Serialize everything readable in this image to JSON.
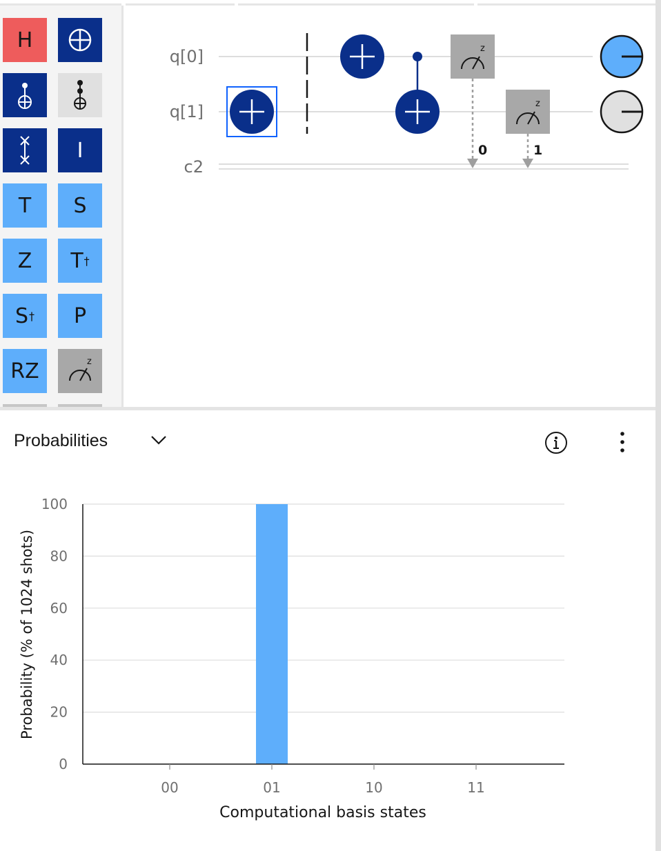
{
  "palette": {
    "gates": [
      {
        "name": "h-gate",
        "label": "H"
      },
      {
        "name": "not-gate",
        "label": ""
      },
      {
        "name": "cnot-gate",
        "label": ""
      },
      {
        "name": "toffoli-gate",
        "label": ""
      },
      {
        "name": "swap-gate",
        "label": ""
      },
      {
        "name": "identity-gate",
        "label": "I"
      },
      {
        "name": "t-gate",
        "label": "T"
      },
      {
        "name": "s-gate",
        "label": "S"
      },
      {
        "name": "z-gate",
        "label": "Z"
      },
      {
        "name": "tdg-gate",
        "label": "T",
        "sup": "†"
      },
      {
        "name": "sdg-gate",
        "label": "S",
        "sup": "†"
      },
      {
        "name": "p-gate",
        "label": "P"
      },
      {
        "name": "rz-gate",
        "label": "RZ"
      },
      {
        "name": "measure-gate",
        "label": "z"
      }
    ]
  },
  "circuit": {
    "qubits": [
      "q[0]",
      "q[1]"
    ],
    "classical": "c2",
    "measure_basis": "z",
    "measure_bits": [
      "0",
      "1"
    ],
    "colors": {
      "navy": "#0a2f8a",
      "light_blue": "#5eaefb",
      "measure_gray": "#a8a8a8",
      "wire": "#dddddd"
    }
  },
  "results": {
    "title": "Probabilities",
    "chart_data": {
      "type": "bar",
      "categories": [
        "00",
        "01",
        "10",
        "11"
      ],
      "values": [
        0,
        100,
        0,
        0
      ],
      "xlabel": "Computational basis states",
      "ylabel": "Probability (% of 1024 shots)",
      "ylim": [
        0,
        100
      ],
      "yticks": [
        0,
        20,
        40,
        60,
        80,
        100
      ],
      "grid": true,
      "bar_color": "#5eaefb"
    }
  }
}
